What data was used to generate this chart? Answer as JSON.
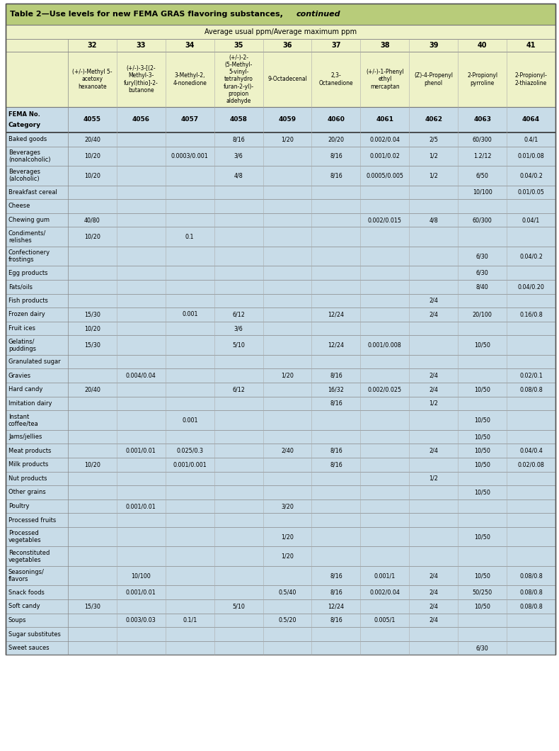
{
  "title_normal": "Table 2—Use levels for new FEMA GRAS flavoring substances, ",
  "title_italic": "continued",
  "header_bg": "#b8cc7a",
  "subheader_bg": "#eef2c8",
  "row_bg": "#c8dce8",
  "border_color": "#888888",
  "text_color": "#000000",
  "col_numbers": [
    "32",
    "33",
    "34",
    "35",
    "36",
    "37",
    "38",
    "39",
    "40",
    "41"
  ],
  "col_names_lines": [
    [
      "(+/-)-Methyl 5-",
      "acetoxy",
      "hexanoate"
    ],
    [
      "(+/-)-3-[(2-",
      "Methyl-3-",
      "furyl)thio]-2-",
      "butanone"
    ],
    [
      "3-Methyl-2,",
      "4-nonedione"
    ],
    [
      "(+/-)-2-",
      "(5-Methyl-",
      "5-vinyl-",
      "tetrahydro",
      "furan-2-yl)-",
      "propion",
      "aldehyde"
    ],
    [
      "9-Octadecenal"
    ],
    [
      "2,3-",
      "Octanedione"
    ],
    [
      "(+/-)-1-Phenyl",
      "ethyl",
      "mercaptan"
    ],
    [
      "(Z)-4-Propenyl",
      "phenol"
    ],
    [
      "2-Propionyl",
      "pyrroline"
    ],
    [
      "2-Propionyl-",
      "2-thiazoline"
    ]
  ],
  "fema_nos": [
    "4055",
    "4056",
    "4057",
    "4058",
    "4059",
    "4060",
    "4061",
    "4062",
    "4063",
    "4064"
  ],
  "categories": [
    "Baked goods",
    "Beverages\n(nonalcoholic)",
    "Beverages\n(alcoholic)",
    "Breakfast cereal",
    "Cheese",
    "Chewing gum",
    "Condiments/\nrelishes",
    "Confectionery\nfrostings",
    "Egg products",
    "Fats/oils",
    "Fish products",
    "Frozen dairy",
    "Fruit ices",
    "Gelatins/\npuddings",
    "Granulated sugar",
    "Gravies",
    "Hard candy",
    "Imitation dairy",
    "Instant\ncoffee/tea",
    "Jams/jellies",
    "Meat products",
    "Milk products",
    "Nut products",
    "Other grains",
    "Poultry",
    "Processed fruits",
    "Processed\nvegetables",
    "Reconstituted\nvegetables",
    "Seasonings/\nflavors",
    "Snack foods",
    "Soft candy",
    "Soups",
    "Sugar substitutes",
    "Sweet sauces"
  ],
  "table_data": [
    [
      "20/40",
      "",
      "",
      "8/16",
      "1/20",
      "20/20",
      "0.002/0.04",
      "2/5",
      "60/300",
      "0.4/1"
    ],
    [
      "10/20",
      "",
      "0.0003/0.001",
      "3/6",
      "",
      "8/16",
      "0.001/0.02",
      "1/2",
      "1.2/12",
      "0.01/0.08"
    ],
    [
      "10/20",
      "",
      "",
      "4/8",
      "",
      "8/16",
      "0.0005/0.005",
      "1/2",
      "6/50",
      "0.04/0.2"
    ],
    [
      "",
      "",
      "",
      "",
      "",
      "",
      "",
      "",
      "10/100",
      "0.01/0.05"
    ],
    [
      "",
      "",
      "",
      "",
      "",
      "",
      "",
      "",
      "",
      ""
    ],
    [
      "40/80",
      "",
      "",
      "",
      "",
      "",
      "0.002/0.015",
      "4/8",
      "60/300",
      "0.04/1"
    ],
    [
      "10/20",
      "",
      "0.1",
      "",
      "",
      "",
      "",
      "",
      "",
      ""
    ],
    [
      "",
      "",
      "",
      "",
      "",
      "",
      "",
      "",
      "6/30",
      "0.04/0.2"
    ],
    [
      "",
      "",
      "",
      "",
      "",
      "",
      "",
      "",
      "6/30",
      ""
    ],
    [
      "",
      "",
      "",
      "",
      "",
      "",
      "",
      "",
      "8/40",
      "0.04/0.20"
    ],
    [
      "",
      "",
      "",
      "",
      "",
      "",
      "",
      "2/4",
      "",
      ""
    ],
    [
      "15/30",
      "",
      "0.001",
      "6/12",
      "",
      "12/24",
      "",
      "2/4",
      "20/100",
      "0.16/0.8"
    ],
    [
      "10/20",
      "",
      "",
      "3/6",
      "",
      "",
      "",
      "",
      "",
      ""
    ],
    [
      "15/30",
      "",
      "",
      "5/10",
      "",
      "12/24",
      "0.001/0.008",
      "",
      "10/50",
      ""
    ],
    [
      "",
      "",
      "",
      "",
      "",
      "",
      "",
      "",
      "",
      ""
    ],
    [
      "",
      "0.004/0.04",
      "",
      "",
      "1/20",
      "8/16",
      "",
      "2/4",
      "",
      "0.02/0.1"
    ],
    [
      "20/40",
      "",
      "",
      "6/12",
      "",
      "16/32",
      "0.002/0.025",
      "2/4",
      "10/50",
      "0.08/0.8"
    ],
    [
      "",
      "",
      "",
      "",
      "",
      "8/16",
      "",
      "1/2",
      "",
      ""
    ],
    [
      "",
      "",
      "0.001",
      "",
      "",
      "",
      "",
      "",
      "10/50",
      ""
    ],
    [
      "",
      "",
      "",
      "",
      "",
      "",
      "",
      "",
      "10/50",
      ""
    ],
    [
      "",
      "0.001/0.01",
      "0.025/0.3",
      "",
      "2/40",
      "8/16",
      "",
      "2/4",
      "10/50",
      "0.04/0.4"
    ],
    [
      "10/20",
      "",
      "0.001/0.001",
      "",
      "",
      "8/16",
      "",
      "",
      "10/50",
      "0.02/0.08"
    ],
    [
      "",
      "",
      "",
      "",
      "",
      "",
      "",
      "1/2",
      "",
      ""
    ],
    [
      "",
      "",
      "",
      "",
      "",
      "",
      "",
      "",
      "10/50",
      ""
    ],
    [
      "",
      "0.001/0.01",
      "",
      "",
      "3/20",
      "",
      "",
      "",
      "",
      ""
    ],
    [
      "",
      "",
      "",
      "",
      "",
      "",
      "",
      "",
      "",
      ""
    ],
    [
      "",
      "",
      "",
      "",
      "1/20",
      "",
      "",
      "",
      "10/50",
      ""
    ],
    [
      "",
      "",
      "",
      "",
      "1/20",
      "",
      "",
      "",
      "",
      ""
    ],
    [
      "",
      "10/100",
      "",
      "",
      "",
      "8/16",
      "0.001/1",
      "2/4",
      "10/50",
      "0.08/0.8"
    ],
    [
      "",
      "0.001/0.01",
      "",
      "",
      "0.5/40",
      "8/16",
      "0.002/0.04",
      "2/4",
      "50/250",
      "0.08/0.8"
    ],
    [
      "15/30",
      "",
      "",
      "5/10",
      "",
      "12/24",
      "",
      "2/4",
      "10/50",
      "0.08/0.8"
    ],
    [
      "",
      "0.003/0.03",
      "0.1/1",
      "",
      "0.5/20",
      "8/16",
      "0.005/1",
      "2/4",
      "",
      ""
    ],
    [
      "",
      "",
      "",
      "",
      "",
      "",
      "",
      "",
      "",
      ""
    ],
    [
      "",
      "",
      "",
      "",
      "",
      "",
      "",
      "",
      "6/30",
      ""
    ]
  ],
  "avg_header": "Average usual ppm/Average maximum ppm"
}
